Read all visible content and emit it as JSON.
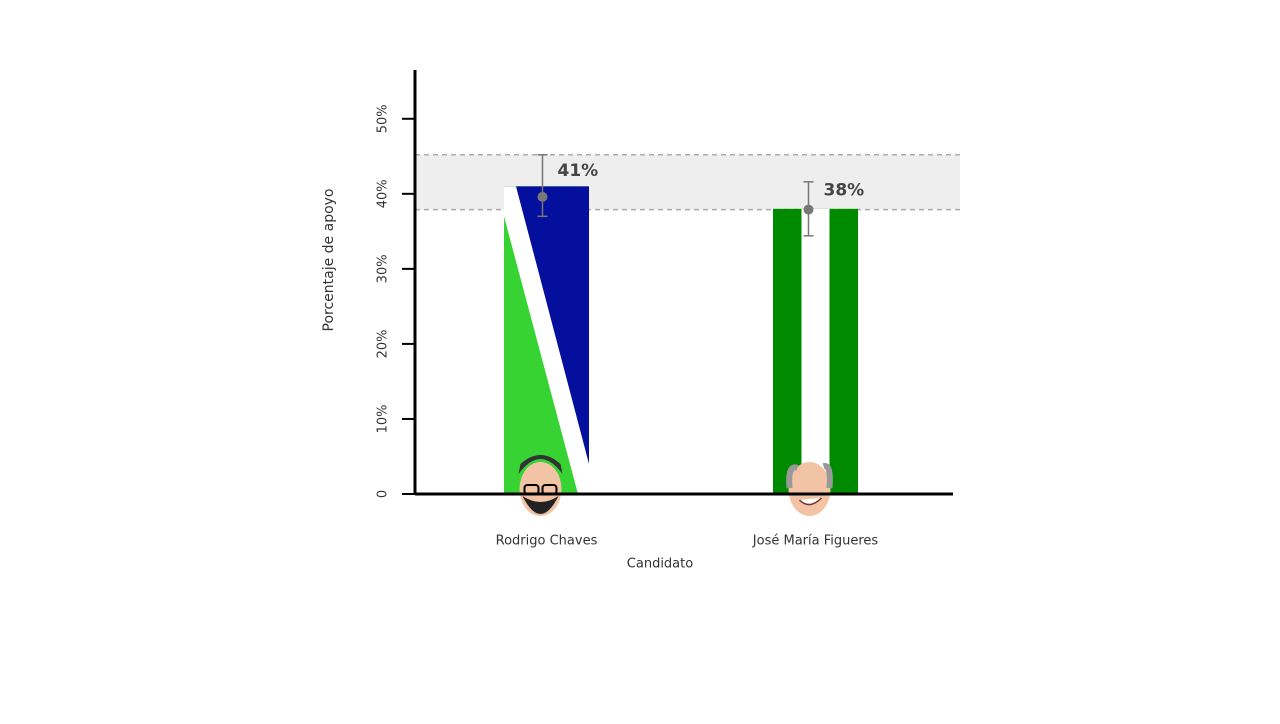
{
  "chart_data": {
    "type": "bar",
    "x_label": "Candidato",
    "y_label": "Porcentaje de apoyo",
    "categories": [
      "Rodrigo Chaves",
      "José María Figueres"
    ],
    "values": [
      41,
      38
    ],
    "value_labels": [
      "41%",
      "38%"
    ],
    "estimates": [
      39.6,
      37.9
    ],
    "error_low": [
      37,
      34.4
    ],
    "error_high": [
      45.2,
      41.6
    ],
    "band": [
      37.9,
      45.2
    ],
    "colors": [
      [
        "#37d333",
        "#040f9e"
      ],
      [
        "#008a00",
        "#008a00"
      ]
    ],
    "ylim": [
      0,
      56.5
    ],
    "yticks": [
      0,
      {
        "value": 10,
        "label": "10%"
      },
      {
        "value": 20,
        "label": "20%"
      },
      {
        "value": 30,
        "label": "30%"
      },
      {
        "value": 40,
        "label": "40%"
      },
      {
        "value": 50,
        "label": "50%"
      }
    ]
  }
}
